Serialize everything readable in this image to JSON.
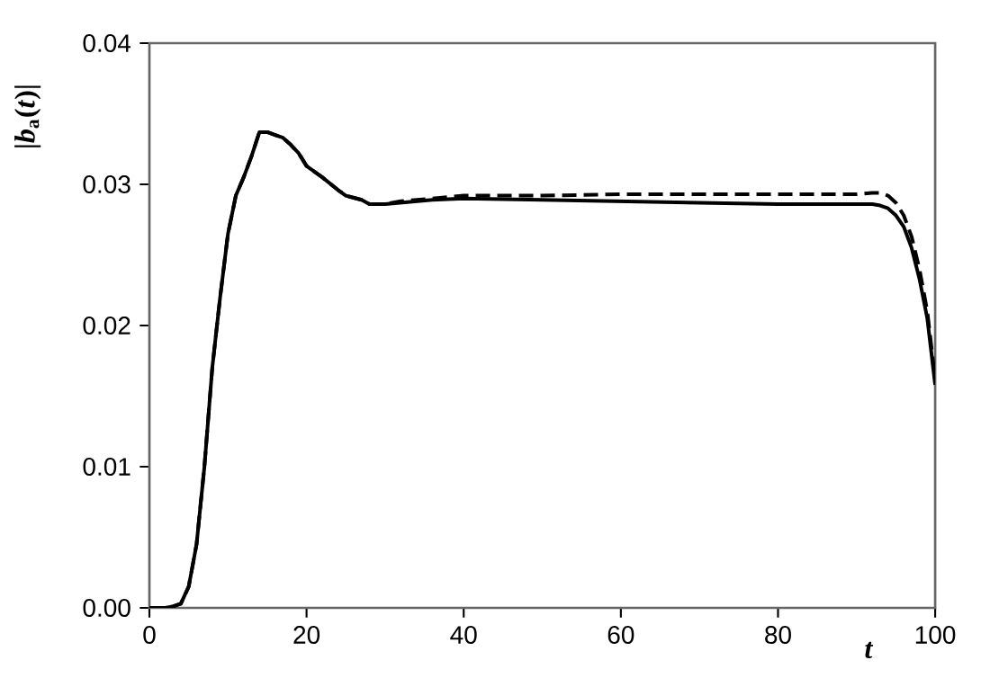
{
  "chart_data": {
    "type": "line",
    "xlabel": "t",
    "ylabel": "|*b*$_{a}$(*t*)|",
    "xlim": [
      0,
      100
    ],
    "ylim": [
      0,
      0.04
    ],
    "xticks": [
      0,
      20,
      40,
      60,
      80,
      100
    ],
    "yticks": [
      {
        "value": 0,
        "label": "0.00"
      },
      {
        "value": 0.01,
        "label": "0.01"
      },
      {
        "value": 0.02,
        "label": "0.02"
      },
      {
        "value": 0.03,
        "label": "0.03"
      },
      {
        "value": 0.04,
        "label": "0.04"
      }
    ],
    "grid": false,
    "series": [
      {
        "color": "#000000",
        "line_style": "dashed",
        "x": [
          0,
          2,
          3,
          4,
          5,
          6,
          7,
          8,
          9,
          10,
          11,
          12,
          13,
          14,
          15,
          16,
          17,
          18,
          19,
          20,
          22,
          24,
          25,
          27,
          28,
          30,
          32,
          34,
          36,
          40,
          50,
          60,
          70,
          80,
          90,
          92,
          93,
          94,
          95,
          96,
          97,
          98,
          99,
          100
        ],
        "values": [
          0,
          0,
          0.0001,
          0.0003,
          0.0015,
          0.0045,
          0.01,
          0.017,
          0.022,
          0.0265,
          0.0292,
          0.0305,
          0.032,
          0.0337,
          0.0337,
          0.0335,
          0.0333,
          0.0328,
          0.0322,
          0.0313,
          0.0305,
          0.0296,
          0.0292,
          0.0289,
          0.0286,
          0.0286,
          0.0288,
          0.0289,
          0.029,
          0.0292,
          0.0292,
          0.0293,
          0.0293,
          0.0293,
          0.0293,
          0.0294,
          0.0294,
          0.0292,
          0.0287,
          0.0278,
          0.0263,
          0.024,
          0.021,
          0.0162
        ]
      },
      {
        "color": "#000000",
        "line_style": "solid",
        "x": [
          0,
          2,
          3,
          4,
          5,
          6,
          7,
          8,
          9,
          10,
          11,
          12,
          13,
          14,
          15,
          16,
          17,
          18,
          19,
          20,
          22,
          24,
          25,
          27,
          28,
          30,
          32,
          34,
          36,
          40,
          50,
          60,
          70,
          80,
          90,
          92,
          93,
          94,
          95,
          96,
          97,
          98,
          99,
          100
        ],
        "values": [
          0,
          0,
          0.0001,
          0.0003,
          0.0015,
          0.0045,
          0.01,
          0.017,
          0.022,
          0.0265,
          0.0292,
          0.0305,
          0.032,
          0.0337,
          0.0337,
          0.0335,
          0.0333,
          0.0328,
          0.0322,
          0.0313,
          0.0305,
          0.0296,
          0.0292,
          0.0289,
          0.0286,
          0.0286,
          0.0287,
          0.0288,
          0.0289,
          0.029,
          0.0289,
          0.0288,
          0.0287,
          0.0286,
          0.0286,
          0.0286,
          0.0285,
          0.0283,
          0.0278,
          0.027,
          0.0255,
          0.0233,
          0.0205,
          0.0158
        ]
      }
    ]
  }
}
